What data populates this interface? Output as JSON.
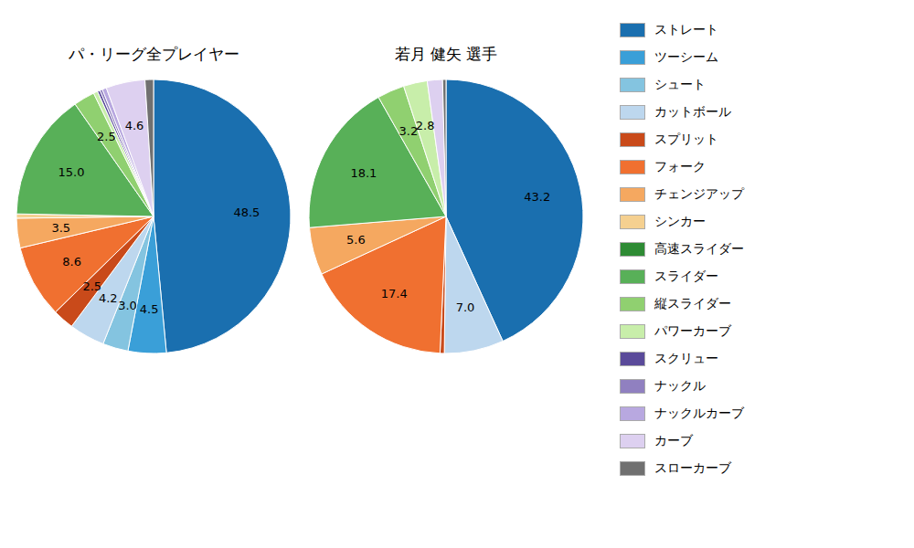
{
  "chart_data": [
    {
      "type": "pie",
      "title": "パ・リーグ全プレイヤー",
      "categories": [
        "ストレート",
        "ツーシーム",
        "シュート",
        "カットボール",
        "スプリット",
        "フォーク",
        "チェンジアップ",
        "シンカー",
        "高速スライダー",
        "スライダー",
        "縦スライダー",
        "パワーカーブ",
        "スクリュー",
        "ナックル",
        "ナックルカーブ",
        "カーブ",
        "スローカーブ"
      ],
      "values": [
        48.5,
        4.5,
        3.0,
        4.2,
        2.5,
        8.6,
        3.5,
        0.5,
        0.0,
        15.0,
        2.5,
        0.5,
        0.3,
        0.3,
        0.5,
        4.6,
        1.0
      ],
      "value_labels": [
        "48.5",
        "4.5",
        "3.0",
        "4.2",
        "2.5",
        "8.6",
        "3.5",
        null,
        null,
        "15.0",
        "2.5",
        null,
        null,
        null,
        null,
        "4.6",
        null
      ],
      "colors": [
        "#1a6faf",
        "#3a9fd8",
        "#84c4e0",
        "#bdd7ee",
        "#c94a1a",
        "#f07030",
        "#f5a860",
        "#f5d090",
        "#2e8b34",
        "#58b058",
        "#90d070",
        "#c8eeaa",
        "#5a4a9a",
        "#9080c0",
        "#b8a8e0",
        "#ddd0f0",
        "#707070"
      ],
      "data_labels": true
    },
    {
      "type": "pie",
      "title": "若月 健矢  選手",
      "categories": [
        "ストレート",
        "ツーシーム",
        "シュート",
        "カットボール",
        "スプリット",
        "フォーク",
        "チェンジアップ",
        "シンカー",
        "高速スライダー",
        "スライダー",
        "縦スライダー",
        "パワーカーブ",
        "スクリュー",
        "ナックル",
        "ナックルカーブ",
        "カーブ",
        "スローカーブ"
      ],
      "values": [
        43.2,
        0.0,
        0.0,
        7.0,
        0.5,
        17.4,
        5.6,
        0.0,
        0.0,
        18.1,
        3.2,
        2.8,
        0.0,
        0.0,
        0.0,
        1.8,
        0.4
      ],
      "value_labels": [
        "43.2",
        null,
        null,
        "7.0",
        null,
        "17.4",
        "5.6",
        null,
        null,
        "18.1",
        "3.2",
        "2.8",
        null,
        null,
        null,
        null,
        null
      ],
      "colors": [
        "#1a6faf",
        "#3a9fd8",
        "#84c4e0",
        "#bdd7ee",
        "#c94a1a",
        "#f07030",
        "#f5a860",
        "#f5d090",
        "#2e8b34",
        "#58b058",
        "#90d070",
        "#c8eeaa",
        "#5a4a9a",
        "#9080c0",
        "#b8a8e0",
        "#ddd0f0",
        "#707070"
      ],
      "data_labels": true,
      "legend": "right"
    }
  ]
}
